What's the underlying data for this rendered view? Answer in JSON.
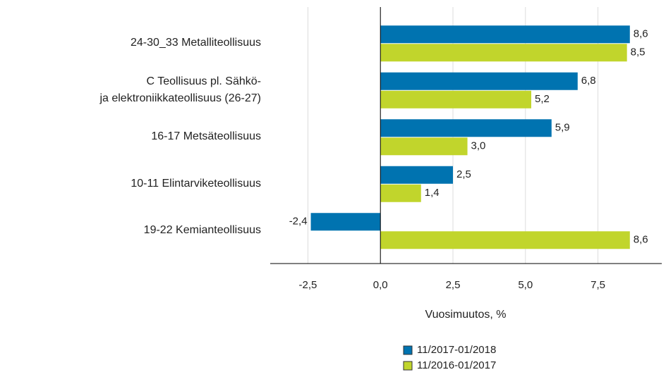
{
  "chart_data": {
    "type": "bar",
    "orientation": "horizontal",
    "x_label": "Vuosimuutos, %",
    "categories": [
      "24-30_33 Metalliteollisuus",
      "C Teollisuus pl. Sähkö-\nja elektroniikkateollisuus (26-27)",
      "16-17 Metsäteollisuus",
      "10-11 Elintarviketeollisuus",
      "19-22 Kemianteollisuus"
    ],
    "series": [
      {
        "name": "11/2017-01/2018",
        "color": "#0073b0",
        "values": [
          8.6,
          6.8,
          5.9,
          2.5,
          -2.4
        ],
        "value_labels": [
          "8,6",
          "6,8",
          "5,9",
          "2,5",
          "-2,4"
        ]
      },
      {
        "name": "11/2016-01/2017",
        "color": "#c1d52c",
        "values": [
          8.5,
          5.2,
          3.0,
          1.4,
          8.6
        ],
        "value_labels": [
          "8,5",
          "5,2",
          "3,0",
          "1,4",
          "8,6"
        ]
      }
    ],
    "xlim": [
      -3.8,
      9.7
    ],
    "xticks": [
      {
        "value": -2.5,
        "label": "-2,5"
      },
      {
        "value": 0,
        "label": "0,0"
      },
      {
        "value": 2.5,
        "label": "2,5"
      },
      {
        "value": 5,
        "label": "5,0"
      },
      {
        "value": 7.5,
        "label": "7,5"
      }
    ],
    "grid": true
  }
}
